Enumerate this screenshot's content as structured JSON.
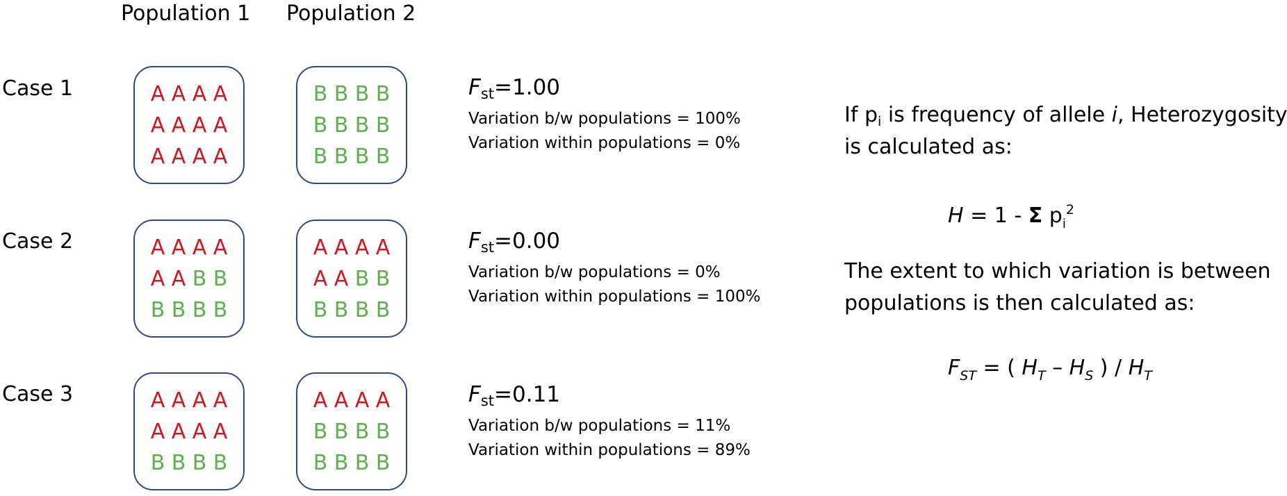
{
  "headers": [
    "Population 1",
    "Population 2"
  ],
  "cases": [
    {
      "label": "Case 1",
      "pop1": [
        [
          "A",
          "A",
          "A",
          "A"
        ],
        [
          "A",
          "A",
          "A",
          "A"
        ],
        [
          "A",
          "A",
          "A",
          "A"
        ]
      ],
      "pop2": [
        [
          "B",
          "B",
          "B",
          "B"
        ],
        [
          "B",
          "B",
          "B",
          "B"
        ],
        [
          "B",
          "B",
          "B",
          "B"
        ]
      ],
      "fst_symbol": "F",
      "fst_sub": "st",
      "fst_value": "=1.00",
      "between": "Variation b/w populations = 100%",
      "within": "Variation within populations = 0%"
    },
    {
      "label": "Case 2",
      "pop1": [
        [
          "A",
          "A",
          "A",
          "A"
        ],
        [
          "A",
          "A",
          "B",
          "B"
        ],
        [
          "B",
          "B",
          "B",
          "B"
        ]
      ],
      "pop2": [
        [
          "A",
          "A",
          "A",
          "A"
        ],
        [
          "A",
          "A",
          "B",
          "B"
        ],
        [
          "B",
          "B",
          "B",
          "B"
        ]
      ],
      "fst_symbol": "F",
      "fst_sub": "st",
      "fst_value": "=0.00",
      "between": "Variation b/w populations = 0%",
      "within": "Variation within populations = 100%"
    },
    {
      "label": "Case 3",
      "pop1": [
        [
          "A",
          "A",
          "A",
          "A"
        ],
        [
          "A",
          "A",
          "A",
          "A"
        ],
        [
          "B",
          "B",
          "B",
          "B"
        ]
      ],
      "pop2": [
        [
          "A",
          "A",
          "A",
          "A"
        ],
        [
          "B",
          "B",
          "B",
          "B"
        ],
        [
          "B",
          "B",
          "B",
          "B"
        ]
      ],
      "fst_symbol": "F",
      "fst_sub": "st",
      "fst_value": "=0.11",
      "between": "Variation b/w populations = 11%",
      "within": "Variation within populations = 89%"
    }
  ],
  "explanation": {
    "line1_prefix": "If p",
    "line1_sub": "i",
    "line1_mid": " is frequency of allele ",
    "line1_italic": "i",
    "line1_suffix": ", Heterozygosity",
    "line2": "is calculated as:",
    "formula_h": {
      "lhs": "H",
      "eq": " = 1 - ",
      "sigma": "Σ",
      "p": " p",
      "sub": "i",
      "sup": "2"
    },
    "line3": "The extent to which variation is between",
    "line4": "populations is then calculated as:",
    "formula_fst": {
      "F": "F",
      "F_sub": "ST",
      "eq": " = ( ",
      "HT": "H",
      "HT_sub": "T",
      "minus": " – ",
      "HS": "H",
      "HS_sub": "S",
      "close": " ) / ",
      "HT2": "H",
      "HT2_sub": "T"
    }
  },
  "colors": {
    "allele_A": "#d0161f",
    "allele_B": "#5fae4f",
    "box_border": "#2e4a86"
  }
}
